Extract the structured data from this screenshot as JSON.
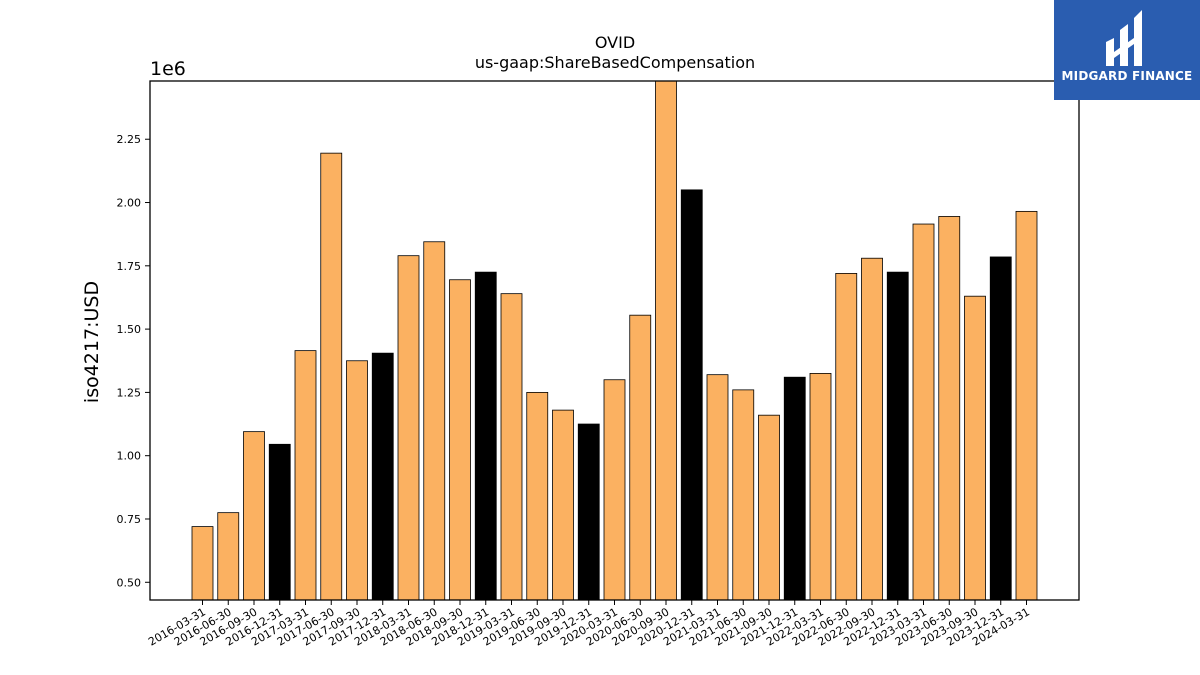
{
  "chart_data": {
    "type": "bar",
    "title": "OVID",
    "subtitle": "us-gaap:ShareBasedCompensation",
    "ylabel": "iso4217:USD",
    "y_multiplier_label": "1e6",
    "ylim": [
      0.43,
      2.48
    ],
    "yticks": [
      "0.50",
      "0.75",
      "1.00",
      "1.25",
      "1.50",
      "1.75",
      "2.00",
      "2.25"
    ],
    "categories": [
      "2016-03-31",
      "2016-06-30",
      "2016-09-30",
      "2016-12-31",
      "2017-03-31",
      "2017-06-30",
      "2017-09-30",
      "2017-12-31",
      "2018-03-31",
      "2018-06-30",
      "2018-09-30",
      "2018-12-31",
      "2019-03-31",
      "2019-06-30",
      "2019-09-30",
      "2019-12-31",
      "2020-03-31",
      "2020-06-30",
      "2020-09-30",
      "2020-12-31",
      "2021-03-31",
      "2021-06-30",
      "2021-09-30",
      "2021-12-31",
      "2022-03-31",
      "2022-06-30",
      "2022-09-30",
      "2022-12-31",
      "2023-03-31",
      "2023-06-30",
      "2023-09-30",
      "2023-12-31",
      "2024-03-31"
    ],
    "values": [
      0.72,
      0.775,
      1.095,
      1.045,
      1.415,
      2.195,
      1.375,
      1.405,
      1.79,
      1.845,
      1.695,
      1.725,
      1.64,
      1.25,
      1.18,
      1.125,
      1.3,
      1.555,
      2.49,
      2.05,
      1.32,
      1.26,
      1.16,
      1.31,
      1.325,
      1.72,
      1.78,
      1.725,
      1.915,
      1.945,
      1.63,
      1.785,
      1.965
    ],
    "highlight_indices": [
      3,
      7,
      11,
      15,
      19,
      23,
      27,
      31
    ],
    "colors": {
      "bar": "#fbb161",
      "highlight": "#000000",
      "edge": "#000000"
    },
    "grid": false
  },
  "logo": {
    "text": "MIDGARD FINANCE",
    "background": "#2a5db0"
  }
}
